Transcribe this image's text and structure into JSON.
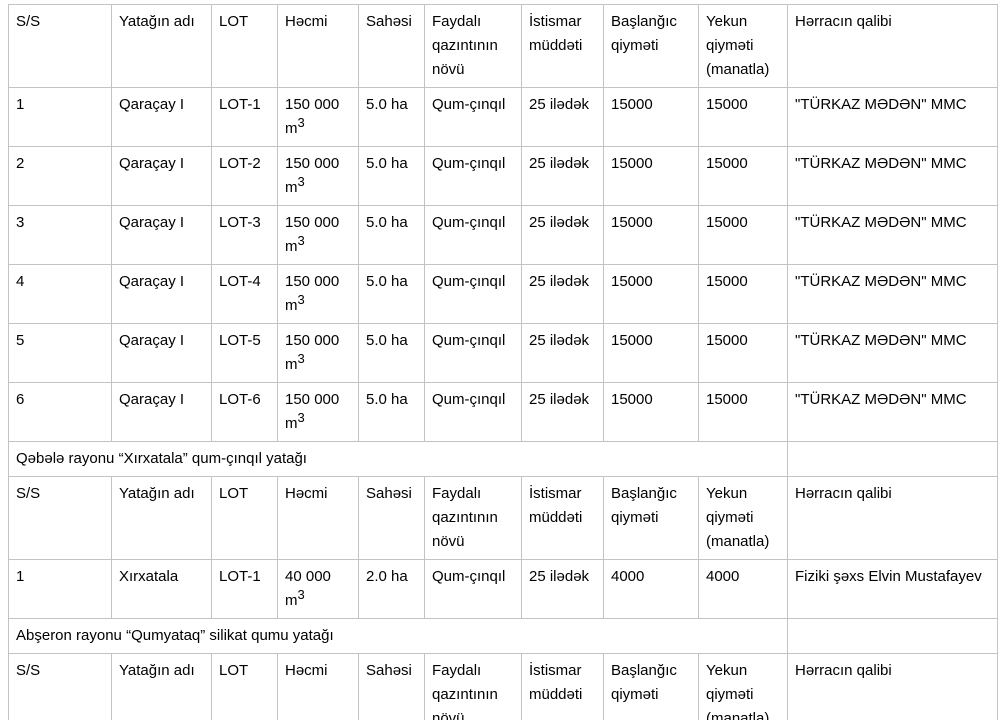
{
  "document": {
    "background": "#ffffff",
    "text_color": "#000000",
    "border_color": "#c3c3c3"
  },
  "table": {
    "columns": [
      "S/S",
      "Yatağın adı",
      "LOT",
      "Həcmi",
      "Sahəsi",
      "Faydalı qazıntının növü",
      "İstismar müddəti",
      "Başlanğıc qiyməti",
      "Yekun qiyməti (manatla)",
      "Hərracın qalibi"
    ],
    "blocks": [
      {
        "type": "header"
      },
      {
        "type": "row",
        "cells": [
          "1",
          "Qaraçay I",
          "LOT-1",
          {
            "v": "150 000",
            "u": "m",
            "sup": "3"
          },
          "5.0 ha",
          "Qum-çınqıl",
          "25 ilədək",
          "15000",
          "15000",
          "\"TÜRKAZ MƏDƏN\" MMC"
        ]
      },
      {
        "type": "row",
        "cells": [
          "2",
          "Qaraçay I",
          "LOT-2",
          {
            "v": "150 000",
            "u": "m",
            "sup": "3"
          },
          "5.0 ha",
          "Qum-çınqıl",
          "25 ilədək",
          "15000",
          "15000",
          "\"TÜRKAZ MƏDƏN\" MMC"
        ]
      },
      {
        "type": "row",
        "cells": [
          "3",
          "Qaraçay I",
          "LOT-3",
          {
            "v": "150 000",
            "u": "m",
            "sup": "3"
          },
          "5.0 ha",
          "Qum-çınqıl",
          "25 ilədək",
          "15000",
          "15000",
          "\"TÜRKAZ MƏDƏN\" MMC"
        ]
      },
      {
        "type": "row",
        "cells": [
          "4",
          "Qaraçay I",
          "LOT-4",
          {
            "v": "150 000",
            "u": "m",
            "sup": "3"
          },
          "5.0 ha",
          "Qum-çınqıl",
          "25 ilədək",
          "15000",
          "15000",
          "\"TÜRKAZ MƏDƏN\" MMC"
        ]
      },
      {
        "type": "row",
        "cells": [
          "5",
          "Qaraçay I",
          "LOT-5",
          {
            "v": "150 000",
            "u": "m",
            "sup": "3"
          },
          "5.0 ha",
          "Qum-çınqıl",
          "25 ilədək",
          "15000",
          "15000",
          "\"TÜRKAZ MƏDƏN\" MMC"
        ]
      },
      {
        "type": "row",
        "cells": [
          "6",
          "Qaraçay I",
          "LOT-6",
          {
            "v": "150 000",
            "u": "m",
            "sup": "3"
          },
          "5.0 ha",
          "Qum-çınqıl",
          "25 ilədək",
          "15000",
          "15000",
          "\"TÜRKAZ MƏDƏN\" MMC"
        ]
      },
      {
        "type": "section",
        "title": "Qəbələ rayonu “Xırxatala” qum-çınqıl yatağı"
      },
      {
        "type": "header"
      },
      {
        "type": "row",
        "cells": [
          "1",
          "Xırxatala",
          "LOT-1",
          {
            "v": "40 000",
            "u": "m",
            "sup": "3"
          },
          "2.0 ha",
          "Qum-çınqıl",
          "25 ilədək",
          "4000",
          "4000",
          "Fiziki şəxs Elvin Mustafayev"
        ]
      },
      {
        "type": "section",
        "title": "Abşeron rayonu “Qumyataq” silikat qumu yatağı"
      },
      {
        "type": "header"
      }
    ]
  }
}
